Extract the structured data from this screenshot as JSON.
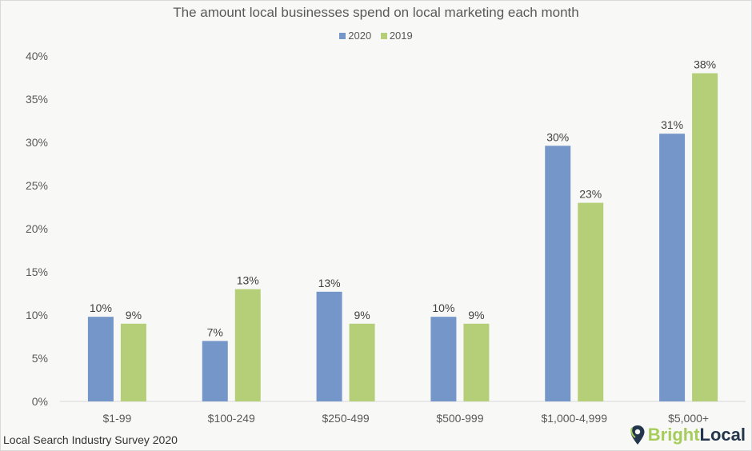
{
  "chart_data": {
    "type": "bar",
    "title": "The amount local businesses spend on local marketing each month",
    "categories": [
      "$1-99",
      "$100-249",
      "$250-499",
      "$500-999",
      "$1,000-4,999",
      "$5,000+"
    ],
    "series": [
      {
        "name": "2020",
        "color": "#7596c9",
        "values": [
          9.8,
          7,
          12.7,
          9.8,
          29.6,
          31
        ],
        "labels": [
          "10%",
          "7%",
          "13%",
          "10%",
          "30%",
          "31%"
        ]
      },
      {
        "name": "2019",
        "color": "#b5cf78",
        "values": [
          9,
          13,
          9,
          9,
          23,
          38
        ],
        "labels": [
          "9%",
          "13%",
          "9%",
          "9%",
          "23%",
          "38%"
        ]
      }
    ],
    "ylim": [
      0,
      40
    ],
    "yticks": [
      "0%",
      "5%",
      "10%",
      "15%",
      "20%",
      "25%",
      "30%",
      "35%",
      "40%"
    ],
    "xlabel": "",
    "ylabel": "",
    "grid": false,
    "legend": "top-center"
  },
  "footer": {
    "source": "Local Search Industry Survey 2020"
  },
  "logo": {
    "part1": "Bright",
    "part2": "Local"
  }
}
